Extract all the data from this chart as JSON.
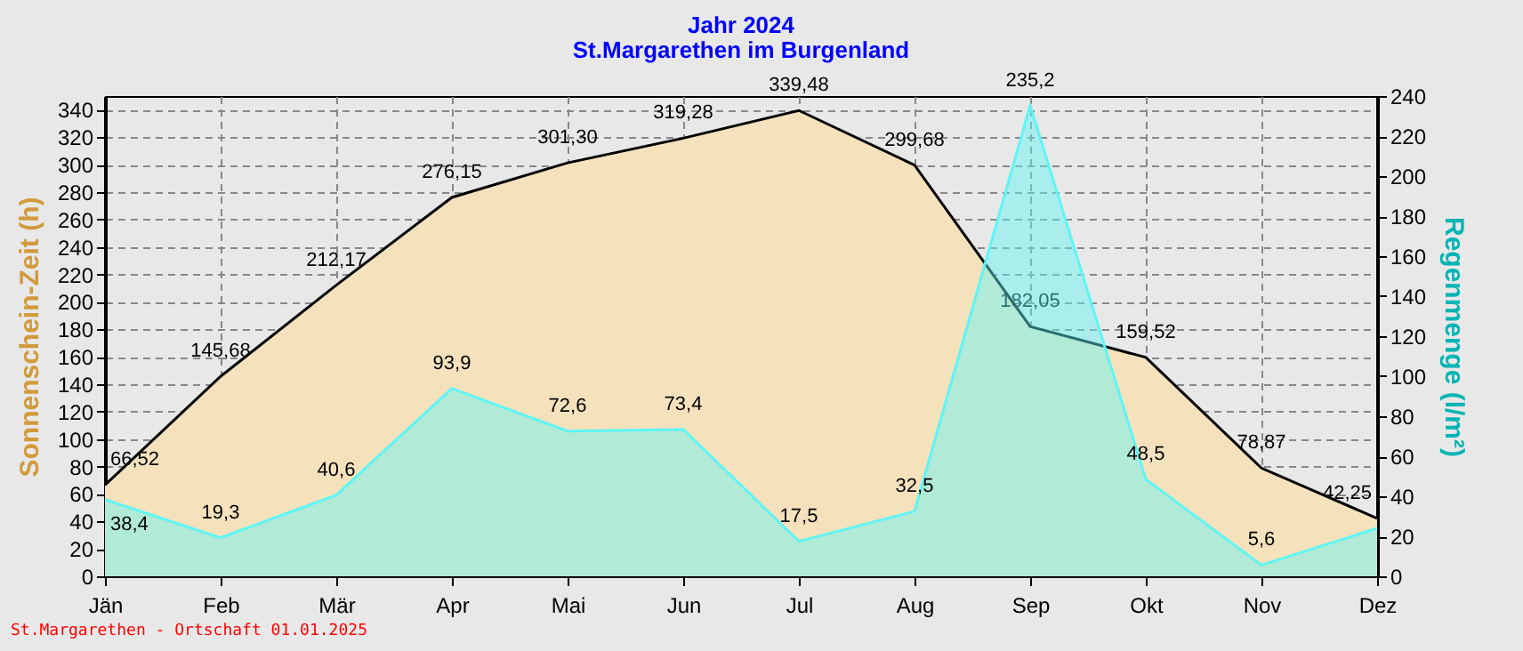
{
  "chart_data": {
    "type": "area",
    "title": "Jahr  2024",
    "subtitle": "St.Margarethen im Burgenland",
    "ylabel": "Sonnenschein-Zeit  (h)",
    "y2label": "Regenmenge  (l/m²)",
    "annotations": [
      "St.Margarethen - Ortschaft  01.01.2025"
    ],
    "categories": [
      "Jän",
      "Feb",
      "Mär",
      "Apr",
      "Mai",
      "Jun",
      "Jul",
      "Aug",
      "Sep",
      "Okt",
      "Nov",
      "Dez"
    ],
    "series": [
      {
        "color": "#f5e2bd",
        "values": [
          66.52,
          145.68,
          212.17,
          276.15,
          301.3,
          319.28,
          339.48,
          299.68,
          182.05,
          159.52,
          78.87,
          42.25
        ],
        "value_labels": [
          "66,52",
          "145,68",
          "212,17",
          "276,15",
          "301,30",
          "319,28",
          "339,48",
          "299,68",
          "182,05",
          "159,52",
          "78,87",
          "42,25"
        ]
      },
      {
        "axis": "y2",
        "color": "#5ff5f5",
        "values": [
          38.4,
          19.3,
          40.6,
          93.9,
          72.6,
          73.4,
          17.5,
          32.5,
          235.2,
          48.5,
          5.6,
          24
        ],
        "value_labels": [
          "38,4",
          "19,3",
          "40,6",
          "93,9",
          "72,6",
          "73,4",
          "17,5",
          "32,5",
          "235,2",
          "48,5",
          "5,6",
          null
        ]
      }
    ],
    "ylim": [
      0,
      350
    ],
    "yticks": [
      0,
      20,
      40,
      60,
      80,
      100,
      120,
      140,
      160,
      180,
      200,
      220,
      240,
      260,
      280,
      300,
      320,
      340
    ],
    "y2lim": [
      0,
      240
    ],
    "y2ticks": [
      0,
      20,
      40,
      60,
      80,
      100,
      120,
      140,
      160,
      180,
      200,
      220,
      240
    ],
    "grid": true
  }
}
